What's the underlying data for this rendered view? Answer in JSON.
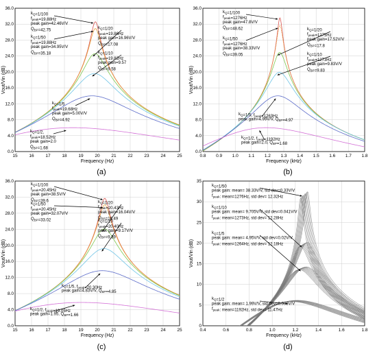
{
  "chart_data": [
    {
      "panel": "(a)",
      "type": "line",
      "xlabel": "Frequency (Hz)",
      "ylabel": "Vout/Vin (dB)",
      "xlim": [
        15,
        25
      ],
      "ylim": [
        0,
        36
      ],
      "xticks": [
        "15",
        "16",
        "17",
        "18",
        "19",
        "20",
        "21",
        "22",
        "23",
        "24",
        "25"
      ],
      "yticks": [
        "0.0",
        "4.0",
        "8.0",
        "12.0",
        "16.0",
        "20.0",
        "24.0",
        "28.0",
        "32.0",
        "36.0"
      ],
      "curves": [
        {
          "f0": 19.88,
          "gain_db": 32.6,
          "q": 42.75,
          "color": "#d9534f"
        },
        {
          "f0": 19.88,
          "gain_db": 30.9,
          "q": 35.18,
          "color": "#e8a33b"
        },
        {
          "f0": 19.86,
          "gain_db": 24.6,
          "q": 17.08,
          "color": "#7ec850"
        },
        {
          "f0": 19.82,
          "gain_db": 19.6,
          "q": 9.58,
          "color": "#6fc4e6"
        },
        {
          "f0": 19.68,
          "gain_db": 14.0,
          "q": 4.92,
          "color": "#5b6bc9"
        },
        {
          "f0": 18.52,
          "gain_db": 6.0,
          "q": 1.68,
          "color": "#d36fd6"
        }
      ],
      "annotations": [
        {
          "lines": [
            "kQ=1/100",
            "fpeak=19.88Hz",
            "peak gain=42.46V/V",
            "QBP=42.75"
          ]
        },
        {
          "lines": [
            "kQ=1/50",
            "fpeak=19.88Hz",
            "peak gain=34.95V/V",
            "QBP=35.18"
          ]
        },
        {
          "lines": [
            "kQ=1/20",
            "fpeak=19.86Hz",
            "peak gain=16.96V/V",
            "QBP=17.08"
          ]
        },
        {
          "lines": [
            "kQ=1/10",
            "fpeak=19.82Hz",
            "peak gain=9.57",
            "QBP=9.58"
          ]
        },
        {
          "lines": [
            "kQ=1/5",
            "fpeak=19.68Hz",
            "peak gain=5.00V/V",
            "QBP=4.92"
          ]
        },
        {
          "lines": [
            "kQ=1/2,",
            "fpeak=18.52Hz",
            "peak gain=2.0",
            "QBP=1.68"
          ]
        }
      ],
      "caption": "(a)"
    },
    {
      "panel": "(b)",
      "type": "line",
      "xlabel": "Frequency (kHz)",
      "ylabel": "Vout/Vin (dB)",
      "xlim": [
        0.8,
        1.8
      ],
      "ylim": [
        0,
        36
      ],
      "xticks": [
        "0.8",
        "0.9",
        "1.0",
        "1.1",
        "1.2",
        "1.3",
        "1.4",
        "1.5",
        "1.6",
        "1.7",
        "1.8"
      ],
      "yticks": [
        "0.0",
        "4.0",
        "8.0",
        "12.0",
        "16.0",
        "20.0",
        "24.0",
        "28.0",
        "32.0",
        "36.0"
      ],
      "curves": [
        {
          "f0": 1.276,
          "gain_db": 33.6,
          "q": 48.62,
          "color": "#d9534f"
        },
        {
          "f0": 1.276,
          "gain_db": 31.7,
          "q": 39.05,
          "color": "#e8a33b"
        },
        {
          "f0": 1.275,
          "gain_db": 24.9,
          "q": 17.8,
          "color": "#7ec850"
        },
        {
          "f0": 1.273,
          "gain_db": 19.9,
          "q": 9.83,
          "color": "#6fc4e6"
        },
        {
          "f0": 1.263,
          "gain_db": 14.0,
          "q": 4.97,
          "color": "#5b6bc9"
        },
        {
          "f0": 1.192,
          "gain_db": 6.0,
          "q": 1.68,
          "color": "#d36fd6"
        }
      ],
      "annotations": [
        {
          "lines": [
            "kQ=1/100",
            "fpeak=1276Hz",
            "peak gain=47.8V/V",
            "QBP=48.62"
          ]
        },
        {
          "lines": [
            "kQ=1/50",
            "fpeak=1276Hz",
            "peak gain=38.33V/V",
            "QBP=39.05"
          ]
        },
        {
          "lines": [
            "kQ=1/20",
            "fpeak=1275Hz",
            "peak gain=17.52V/V",
            "QBP=17.8"
          ]
        },
        {
          "lines": [
            "kQ=1/10",
            "fpeak=1273Hz",
            "peak gain=9.83V/V",
            "QBP=9.83"
          ]
        },
        {
          "lines": [
            "kQ=1/5, fpeak=1263Hz",
            "peak gain=4.99V/V, QBP=4.97"
          ]
        },
        {
          "lines": [
            "kQ=1/2, fpeak=1192Hz",
            "peak gain=2.0, QBP=1.68"
          ]
        }
      ],
      "caption": "(b)"
    },
    {
      "panel": "(c)",
      "type": "line",
      "xlabel": "Frequency (Hz)",
      "ylabel": "Vout/Vin (dB)",
      "xlim": [
        15,
        25
      ],
      "ylim": [
        0,
        36
      ],
      "xticks": [
        "15",
        "16",
        "17",
        "18",
        "19",
        "20",
        "21",
        "22",
        "23",
        "24",
        "25"
      ],
      "yticks": [
        "0.0",
        "4.0",
        "8.0",
        "12.0",
        "16.0",
        "20.0",
        "24.0",
        "28.0",
        "32.0",
        "36.0"
      ],
      "curves": [
        {
          "f0": 20.45,
          "gain_db": 31.7,
          "q": 39.6,
          "color": "#d9534f"
        },
        {
          "f0": 20.45,
          "gain_db": 30.1,
          "q": 33.02,
          "color": "#e8a33b"
        },
        {
          "f0": 20.43,
          "gain_db": 24.1,
          "q": 16.49,
          "color": "#7ec850"
        },
        {
          "f0": 20.4,
          "gain_db": 19.2,
          "q": 9.39,
          "color": "#6fc4e6"
        },
        {
          "f0": 20.3,
          "gain_db": 13.7,
          "q": 4.85,
          "color": "#5b6bc9"
        },
        {
          "f0": 19.05,
          "gain_db": 5.8,
          "q": 1.66,
          "color": "#d36fd6"
        }
      ],
      "annotations": [
        {
          "lines": [
            "kQ=1/100",
            "fpeak=20.45Hz",
            "peak gain=38.5V/V",
            "QBP=39.6"
          ]
        },
        {
          "lines": [
            "kQ=1/50",
            "fpeak=20.45Hz",
            "peak gain=32.07V/V",
            "QBP=33.02"
          ]
        },
        {
          "lines": [
            "kQ=1/20",
            "fpeak=20.43Hz",
            "peak gain=16.04V/V",
            "QBP=16.49"
          ]
        },
        {
          "lines": [
            "kQ=1/10",
            "fpeak=20.40Hz",
            "peak gain=9.17V/V",
            "QBP=9.39"
          ]
        },
        {
          "lines": [
            "kQ=1/5, fpeak=20.30Hz",
            "peak gain=4.83V/V, QBP=4.85"
          ]
        },
        {
          "lines": [
            "kQ=1/2, fpeak=19.05Hz",
            "peak gain=1.95, QBP=1.66"
          ]
        }
      ],
      "caption": "(c)"
    },
    {
      "panel": "(d)",
      "type": "line",
      "xlabel": "Frequency (kHz)",
      "ylabel": "Vout/Vin (dB)",
      "xlim": [
        0.4,
        1.8
      ],
      "ylim": [
        0,
        35
      ],
      "xticks": [
        "0.4",
        "0.6",
        "0.8",
        "1.0",
        "1.2",
        "1.4",
        "1.6",
        "1.8"
      ],
      "yticks": [
        "0",
        "5",
        "10",
        "15",
        "20",
        "25",
        "30",
        "35"
      ],
      "curves": [
        {
          "f0": 1.276,
          "gain_db": 31.7,
          "q": 39.0,
          "color": "#777777"
        },
        {
          "f0": 1.273,
          "gain_db": 19.7,
          "q": 9.7,
          "color": "#777777"
        },
        {
          "f0": 1.264,
          "gain_db": 13.9,
          "q": 4.9,
          "color": "#777777"
        },
        {
          "f0": 1.192,
          "gain_db": 6.0,
          "q": 1.68,
          "color": "#777777"
        }
      ],
      "annotations": [
        {
          "lines": [
            "kQ=1/50",
            "peak gain: mean= 38.33V/V, std dev=0.33V/V",
            "fpeak: mean=1276Hz, std dev= 12.32Hz"
          ]
        },
        {
          "lines": [
            "kQ=1/10",
            "peak gain: mean= 9.705V/V, std dev=0.041V/V",
            "fpeak: mean=1273Hz, std dev= 12.28Hz"
          ]
        },
        {
          "lines": [
            "kQ=1/5",
            "peak gain: mean= 4.95V/V, std dev=0.02V/V",
            "fpeak: mean=1264Hz, std dev= 12.18Hz"
          ]
        },
        {
          "lines": [
            "kQ=1/2",
            "peak gain: mean= 1.99V/V, std dev=0.008V/V",
            "fpeak: mean=1192Hz, std dev= 11.47Hz"
          ]
        }
      ],
      "caption": "(d)"
    }
  ]
}
